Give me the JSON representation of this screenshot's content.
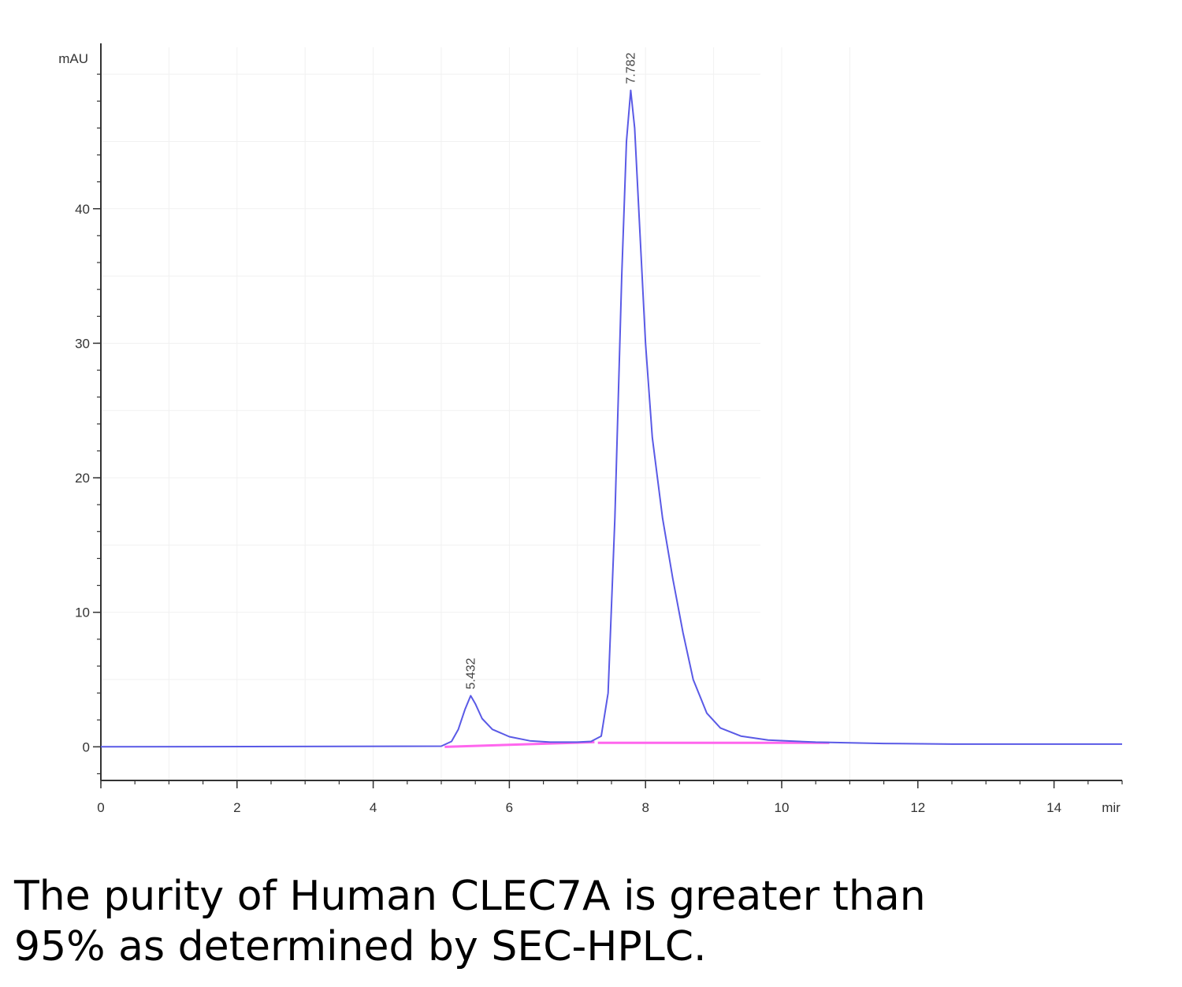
{
  "chart_data": {
    "type": "line",
    "ylabel": "mAU",
    "xlabel": "mir",
    "xlim": [
      0,
      15
    ],
    "ylim": [
      -2.5,
      52
    ],
    "x_ticks": [
      0,
      2,
      4,
      6,
      8,
      10,
      12,
      14
    ],
    "y_ticks": [
      0,
      10,
      20,
      30,
      40
    ],
    "grid": true,
    "series": [
      {
        "color": "#5a5ae6",
        "points": [
          [
            0,
            0
          ],
          [
            5.0,
            0.05
          ],
          [
            5.15,
            0.4
          ],
          [
            5.25,
            1.3
          ],
          [
            5.35,
            2.8
          ],
          [
            5.432,
            3.8
          ],
          [
            5.5,
            3.2
          ],
          [
            5.6,
            2.1
          ],
          [
            5.75,
            1.3
          ],
          [
            6.0,
            0.75
          ],
          [
            6.3,
            0.45
          ],
          [
            6.6,
            0.35
          ],
          [
            7.0,
            0.35
          ],
          [
            7.2,
            0.4
          ],
          [
            7.35,
            0.8
          ],
          [
            7.45,
            4
          ],
          [
            7.55,
            17
          ],
          [
            7.65,
            35
          ],
          [
            7.72,
            45
          ],
          [
            7.782,
            48.8
          ],
          [
            7.84,
            46
          ],
          [
            7.92,
            38
          ],
          [
            8.0,
            30
          ],
          [
            8.1,
            23
          ],
          [
            8.25,
            17
          ],
          [
            8.4,
            12.5
          ],
          [
            8.55,
            8.5
          ],
          [
            8.7,
            5.0
          ],
          [
            8.9,
            2.5
          ],
          [
            9.1,
            1.4
          ],
          [
            9.4,
            0.8
          ],
          [
            9.8,
            0.5
          ],
          [
            10.5,
            0.35
          ],
          [
            11.5,
            0.25
          ],
          [
            12.5,
            0.2
          ],
          [
            15,
            0.2
          ]
        ]
      }
    ],
    "baselines": [
      {
        "color": "#ff66ee",
        "points": [
          [
            5.05,
            0
          ],
          [
            7.25,
            0.35
          ]
        ]
      },
      {
        "color": "#ff66ee",
        "points": [
          [
            7.3,
            0.3
          ],
          [
            10.7,
            0.3
          ]
        ]
      }
    ],
    "peaks": [
      {
        "x": 5.432,
        "y": 3.8,
        "label": "5.432"
      },
      {
        "x": 7.782,
        "y": 48.8,
        "label": "7.782"
      }
    ]
  },
  "caption": {
    "line1": "The purity of Human CLEC7A is greater than",
    "line2": "95% as determined by SEC-HPLC."
  }
}
